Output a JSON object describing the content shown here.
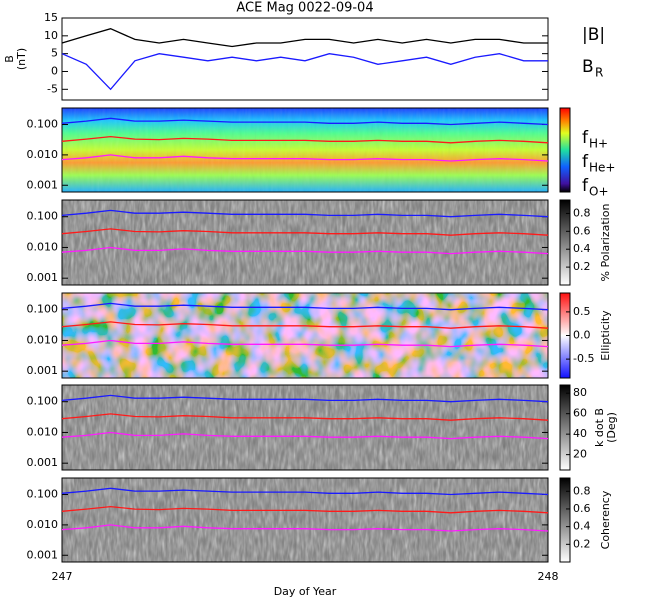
{
  "chart_data": [
    {
      "type": "line",
      "title": "ACE Mag 0022-09-04",
      "ylabel": "B",
      "yunit": "(nT)",
      "x": [
        247.0,
        247.05,
        247.1,
        247.15,
        247.2,
        247.25,
        247.3,
        247.35,
        247.4,
        247.45,
        247.5,
        247.55,
        247.6,
        247.65,
        247.7,
        247.75,
        247.8,
        247.85,
        247.9,
        247.95,
        248.0
      ],
      "ylim": [
        -8,
        15
      ],
      "yticks": [
        -5,
        0,
        5,
        10,
        15
      ],
      "series": [
        {
          "name": "|B|",
          "color": "#000000",
          "values": [
            8,
            10,
            12,
            9,
            8,
            9,
            8,
            7,
            8,
            8,
            9,
            9,
            8,
            9,
            8,
            9,
            8,
            9,
            9,
            8,
            8
          ]
        },
        {
          "name": "B",
          "subscript": "R",
          "color": "#1a1aff",
          "values": [
            5,
            2,
            -5,
            3,
            5,
            4,
            3,
            4,
            3,
            4,
            3,
            5,
            4,
            2,
            3,
            4,
            2,
            4,
            5,
            3,
            3
          ]
        }
      ]
    },
    {
      "type": "spectrogram",
      "palette": "jet",
      "ylim": [
        0.0006,
        0.35
      ],
      "log_y": true,
      "yticks": [
        {
          "value": 0.1,
          "label": "0.100"
        },
        {
          "value": 0.01,
          "label": "0.010"
        },
        0.001
      ],
      "series": [
        {
          "name": "f",
          "subscript": "H+",
          "color": "#1a1aff",
          "values": [
            0.11,
            0.13,
            0.16,
            0.13,
            0.13,
            0.14,
            0.13,
            0.12,
            0.12,
            0.12,
            0.12,
            0.11,
            0.11,
            0.12,
            0.11,
            0.11,
            0.1,
            0.11,
            0.12,
            0.11,
            0.1
          ]
        },
        {
          "name": "f",
          "subscript": "He+",
          "color": "#ff1a1a",
          "values": [
            0.028,
            0.033,
            0.04,
            0.033,
            0.032,
            0.035,
            0.033,
            0.03,
            0.03,
            0.03,
            0.03,
            0.028,
            0.028,
            0.03,
            0.028,
            0.028,
            0.025,
            0.028,
            0.03,
            0.028,
            0.025
          ]
        },
        {
          "name": "f",
          "subscript": "O+",
          "color": "#ff1aff",
          "values": [
            0.007,
            0.008,
            0.01,
            0.008,
            0.008,
            0.009,
            0.008,
            0.0075,
            0.0075,
            0.0075,
            0.0075,
            0.007,
            0.007,
            0.0075,
            0.007,
            0.007,
            0.0063,
            0.007,
            0.0075,
            0.007,
            0.0063
          ]
        }
      ]
    },
    {
      "type": "spectrogram",
      "palette": "gray",
      "ylim": [
        0.0006,
        0.35
      ],
      "log_y": true,
      "yticks": [
        {
          "value": 0.1,
          "label": "0.100"
        },
        {
          "value": 0.01,
          "label": "0.010"
        },
        0.001
      ],
      "colorbar_label": "% Polarization",
      "clim": [
        0,
        0.95
      ],
      "cticks": [
        0.2,
        0.4,
        0.6,
        0.8
      ]
    },
    {
      "type": "spectrogram",
      "palette": "redblue",
      "ylim": [
        0.0006,
        0.35
      ],
      "log_y": true,
      "yticks": [
        {
          "value": 0.1,
          "label": "0.100"
        },
        {
          "value": 0.01,
          "label": "0.010"
        },
        0.001
      ],
      "colorbar_label": "Ellipticity",
      "clim": [
        -0.9,
        0.9
      ],
      "cticks": [
        -0.5,
        {
          "value": 0,
          "label": "0.0"
        },
        0.5
      ]
    },
    {
      "type": "spectrogram",
      "palette": "gray",
      "ylim": [
        0.0006,
        0.35
      ],
      "log_y": true,
      "yticks": [
        {
          "value": 0.1,
          "label": "0.100"
        },
        {
          "value": 0.01,
          "label": "0.010"
        },
        0.001
      ],
      "colorbar_label": "k dot B",
      "colorbar_unit": "(Deg)",
      "clim": [
        5,
        88
      ],
      "cticks": [
        20,
        40,
        60,
        80
      ]
    },
    {
      "type": "spectrogram",
      "palette": "gray",
      "ylim": [
        0.0006,
        0.35
      ],
      "log_y": true,
      "yticks": [
        {
          "value": 0.1,
          "label": "0.100"
        },
        {
          "value": 0.01,
          "label": "0.010"
        },
        0.001
      ],
      "colorbar_label": "Coherency",
      "clim": [
        0,
        0.95
      ],
      "cticks": [
        0.2,
        0.4,
        0.6,
        0.8
      ],
      "xlim": [
        247,
        248
      ],
      "xticks": [
        247,
        248
      ],
      "xlabel": "Day of Year"
    }
  ]
}
